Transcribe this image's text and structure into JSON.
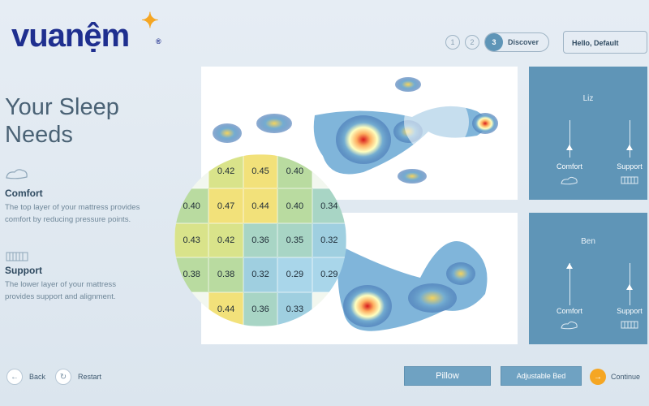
{
  "brand": {
    "logo_text": "vuanệm",
    "reg_mark": "®"
  },
  "stepper": {
    "steps": [
      "1",
      "2",
      "3"
    ],
    "active_label": "Discover"
  },
  "greeting": "Hello, Default",
  "page": {
    "title": "Your Sleep Needs",
    "features": [
      {
        "icon": "pillow-icon",
        "heading": "Comfort",
        "description": "The top layer of your mattress provides comfort by reducing pressure points."
      },
      {
        "icon": "spring-icon",
        "heading": "Support",
        "description": "The lower layer of your mattress provides support and alignment."
      }
    ]
  },
  "profiles": [
    {
      "name": "Liz",
      "comfort_label": "Comfort",
      "support_label": "Support",
      "comfort_level": 0.4,
      "support_level": 0.4
    },
    {
      "name": "Ben",
      "comfort_label": "Comfort",
      "support_label": "Support",
      "comfort_level": 0.6,
      "support_level": 0.3
    }
  ],
  "pressure_grid": {
    "rows": [
      [
        "",
        "0.42",
        "0.45",
        "0.40",
        ""
      ],
      [
        "0.40",
        "0.47",
        "0.44",
        "0.40",
        "0.34"
      ],
      [
        "0.43",
        "0.42",
        "0.36",
        "0.35",
        "0.32"
      ],
      [
        "0.38",
        "0.38",
        "0.32",
        "0.29",
        "0.29"
      ],
      [
        "",
        "0.44",
        "0.36",
        "0.33",
        ""
      ]
    ]
  },
  "footer": {
    "back_label": "Back",
    "restart_label": "Restart",
    "pillow_label": "Pillow",
    "adjustable_bed_label": "Adjustable Bed",
    "continue_label": "Continue"
  },
  "colors": {
    "card_blue": "#5f95b7",
    "button_blue": "#6fa2c2",
    "accent_orange": "#f5a623",
    "brand_navy": "#1f2f8f"
  }
}
